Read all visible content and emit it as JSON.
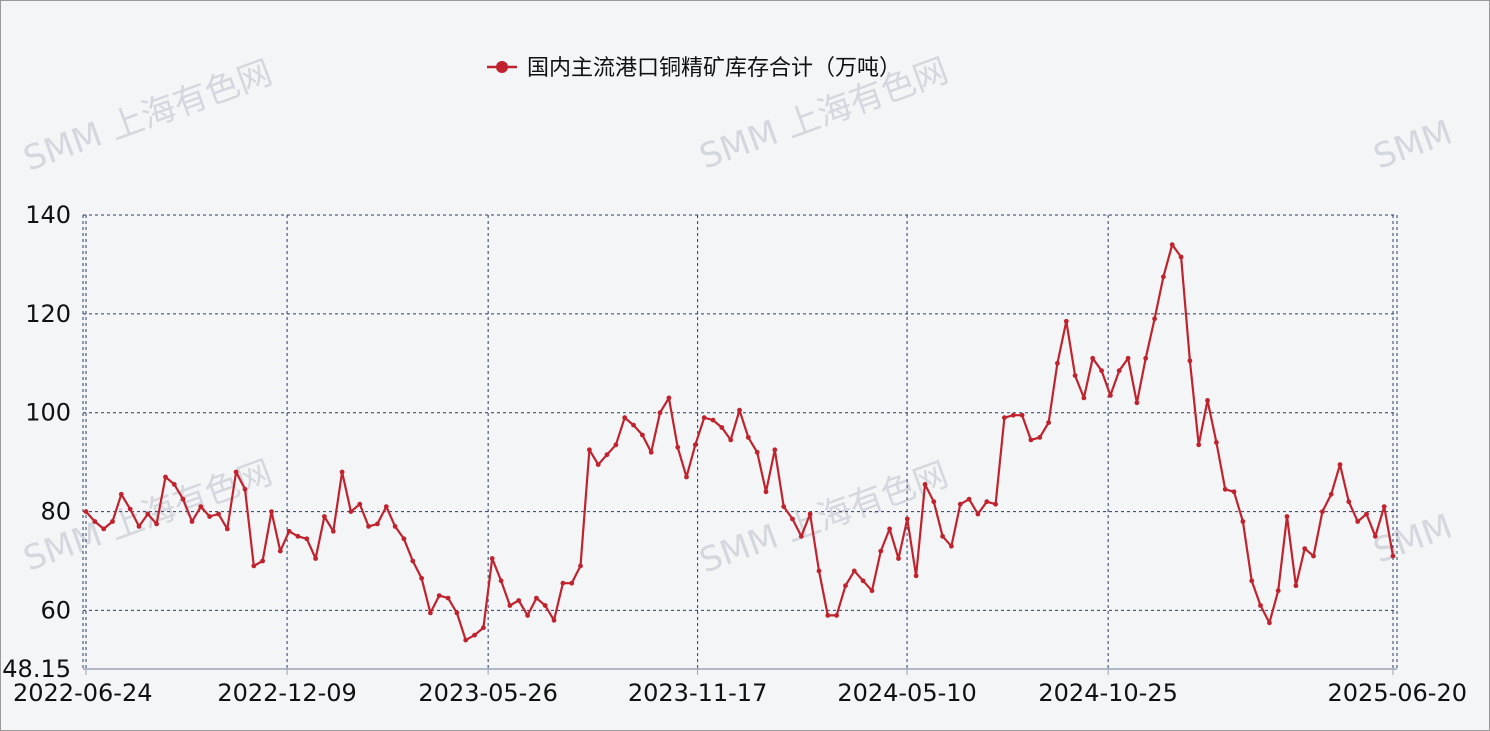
{
  "watermark": "SMM 上海有色网",
  "watermark_short": "SMM",
  "colors": {
    "series": "#c0232d",
    "grid": "#2b3a67",
    "axis": "#9aa3b5",
    "background": "#f4f5f7"
  },
  "chart_data": {
    "type": "line",
    "title": "",
    "xlabel": "",
    "ylabel": "",
    "legend_position": "top-center",
    "grid": true,
    "ylim": [
      48.15,
      140
    ],
    "y_ticks": [
      140,
      120,
      100,
      80,
      60
    ],
    "y_min_label": "48.15",
    "x_tick_labels": [
      "2022-06-24",
      "2022-12-09",
      "2023-05-26",
      "2023-11-17",
      "2024-05-10",
      "2024-10-25",
      "2025-06-20"
    ],
    "x_start": "2022-06-24",
    "x_end": "2025-06-20",
    "series": [
      {
        "name": "国内主流港口铜精矿库存合计（万吨）",
        "color": "#c0232d",
        "values": [
          80,
          78,
          76.5,
          78,
          83.5,
          80.5,
          77,
          79.5,
          77.5,
          87,
          85.5,
          82.5,
          78,
          81,
          79,
          79.5,
          76.5,
          88,
          84.5,
          69,
          70,
          80,
          72,
          76,
          75,
          74.5,
          70.5,
          79,
          76,
          88,
          80,
          81.5,
          77,
          77.5,
          81,
          77,
          74.5,
          70,
          66.5,
          59.5,
          63,
          62.5,
          59.5,
          54,
          55,
          56.5,
          70.5,
          66,
          61,
          62,
          59,
          62.5,
          61,
          58,
          65.5,
          65.5,
          69,
          92.5,
          89.5,
          91.5,
          93.5,
          99,
          97.5,
          95.5,
          92,
          100,
          103,
          93,
          87,
          93.5,
          99,
          98.5,
          97,
          94.5,
          100.5,
          95,
          92,
          84,
          92.5,
          81,
          78.5,
          75,
          79.5,
          68,
          59,
          59,
          65,
          68,
          66,
          64,
          72,
          76.5,
          70.5,
          78.5,
          67,
          85.5,
          82,
          75,
          73,
          81.5,
          82.5,
          79.5,
          82,
          81.5,
          99,
          99.5,
          99.5,
          94.5,
          95,
          98,
          110,
          118.5,
          107.5,
          103,
          111,
          108.5,
          103.5,
          108.5,
          111,
          102,
          111,
          119,
          127.5,
          134,
          131.5,
          110.5,
          93.5,
          102.5,
          94,
          84.5,
          84,
          78,
          66,
          61,
          57.5,
          64,
          79,
          65,
          72.5,
          71,
          80,
          83.5,
          89.5,
          82,
          78,
          79.5,
          75,
          81,
          71
        ]
      }
    ]
  }
}
